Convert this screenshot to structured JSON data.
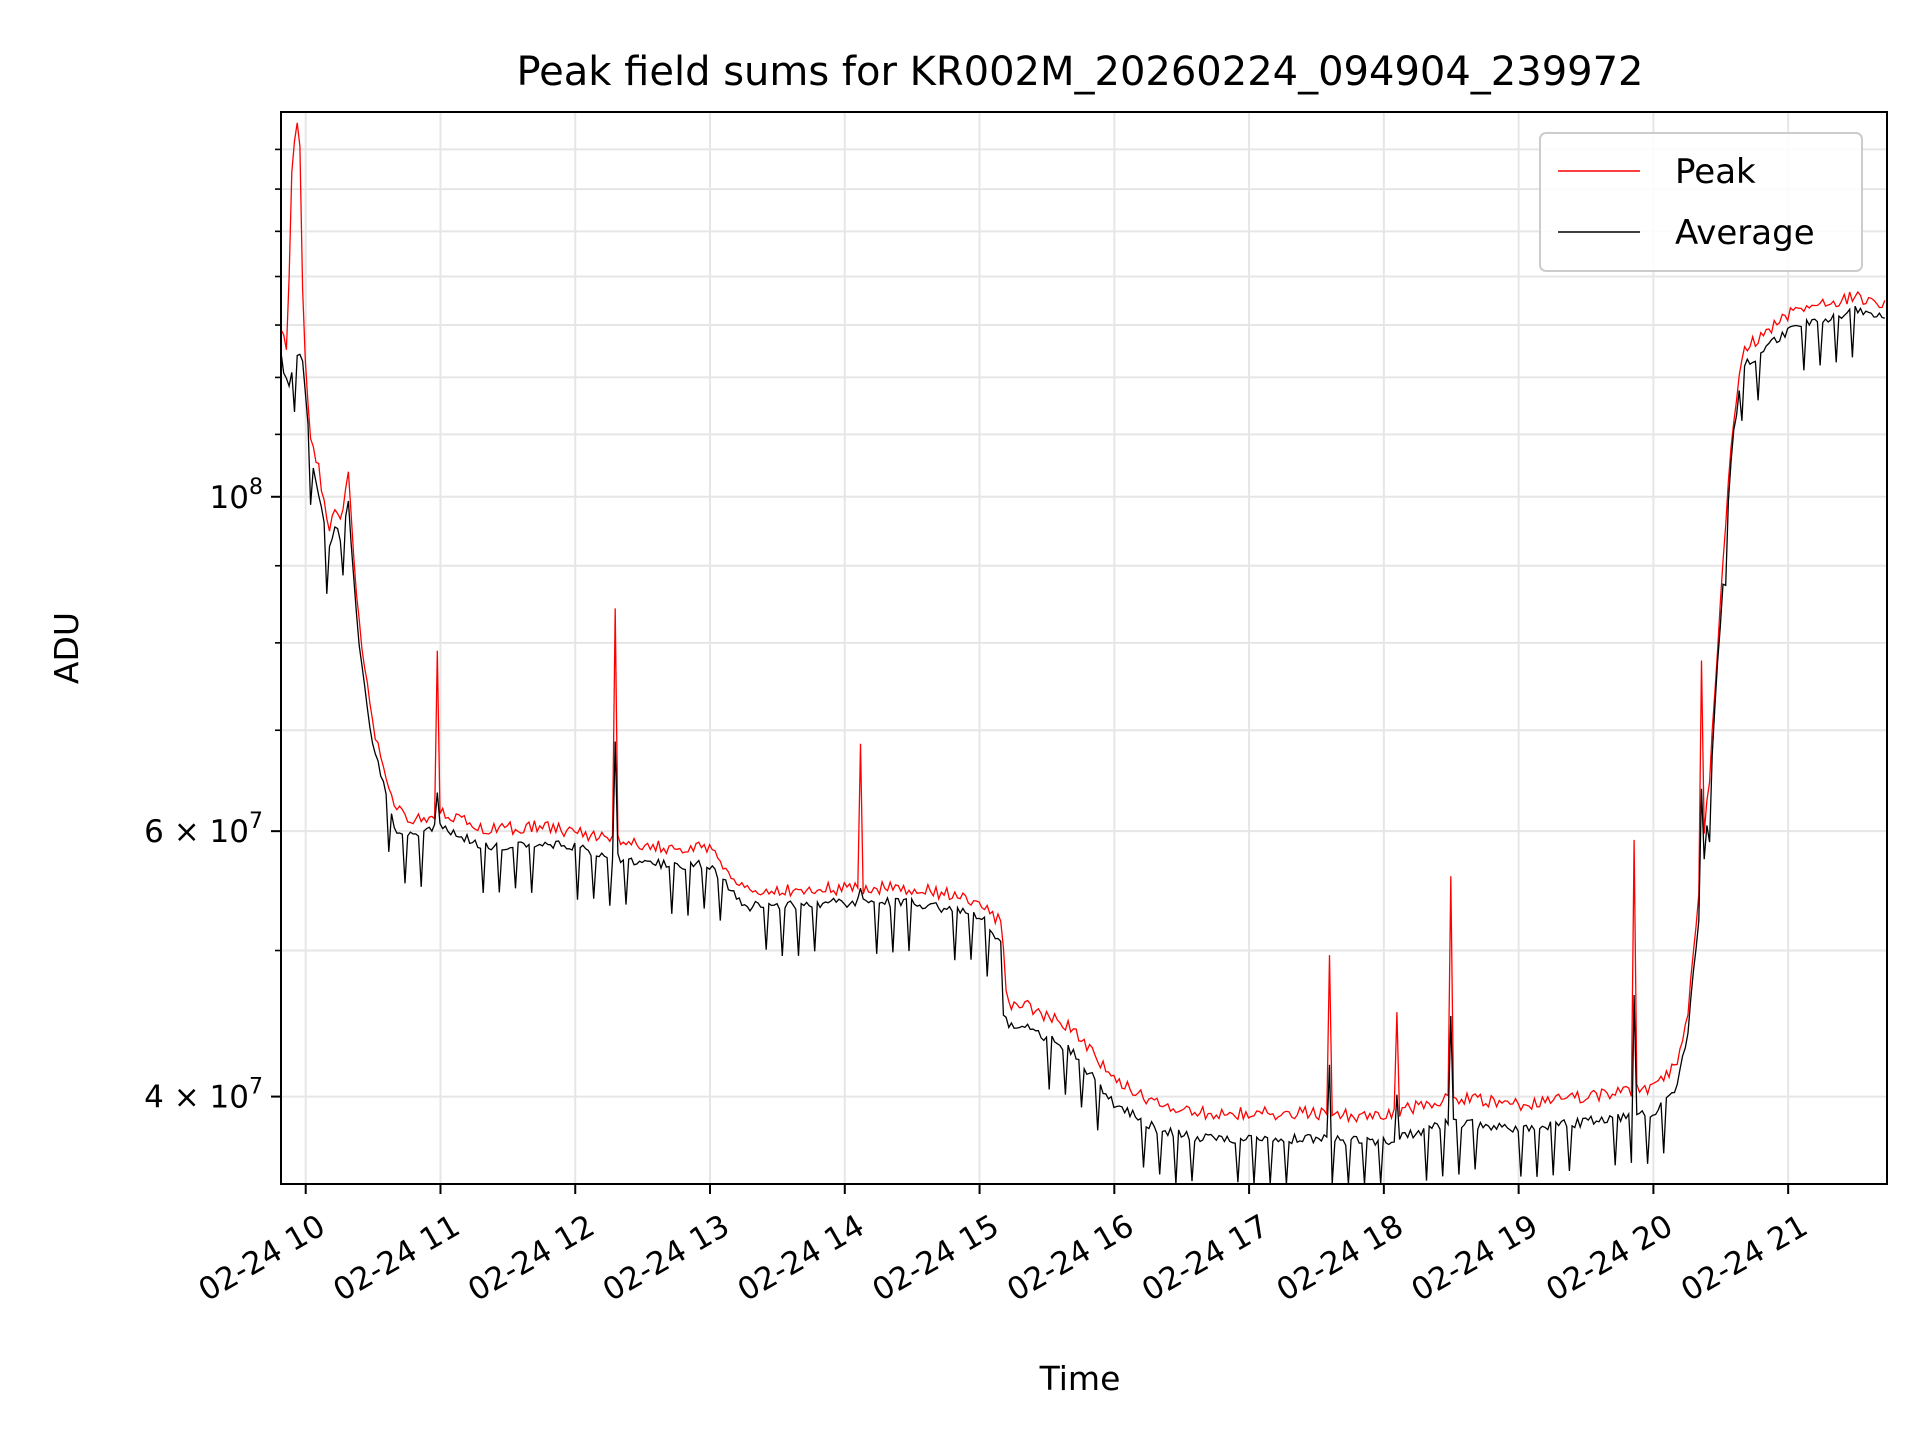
{
  "chart_data": {
    "type": "line",
    "title": "Peak field sums for KR002M_20260224_094904_239972",
    "xlabel": "Time",
    "ylabel": "ADU",
    "yscale": "log",
    "ylim": [
      35000000,
      180000000
    ],
    "xlim": [
      "02-24 09:49",
      "02-24 21:44"
    ],
    "x_ticks": [
      "02-24 10",
      "02-24 11",
      "02-24 12",
      "02-24 13",
      "02-24 14",
      "02-24 15",
      "02-24 16",
      "02-24 17",
      "02-24 18",
      "02-24 19",
      "02-24 20",
      "02-24 21"
    ],
    "y_ticks": [
      {
        "value": 40000000,
        "base": "4",
        "exp": "7"
      },
      {
        "value": 60000000,
        "base": "6",
        "exp": "7"
      },
      {
        "value": 100000000,
        "base": "10",
        "exp": "8"
      }
    ],
    "grid": true,
    "legend_position": "top-right",
    "series": [
      {
        "name": "Peak",
        "color": "#ff0000",
        "x": [
          "02-24 09:49",
          "02-24 09:52",
          "02-24 09:54",
          "02-24 09:57",
          "02-24 09:59",
          "02-24 10:02",
          "02-24 10:06",
          "02-24 10:10",
          "02-24 10:13",
          "02-24 10:16",
          "02-24 10:19",
          "02-24 10:22",
          "02-24 10:25",
          "02-24 10:30",
          "02-24 10:35",
          "02-24 10:40",
          "02-24 10:50",
          "02-24 11:00",
          "02-24 11:10",
          "02-24 11:20",
          "02-24 11:40",
          "02-24 12:00",
          "02-24 12:20",
          "02-24 12:40",
          "02-24 13:00",
          "02-24 13:15",
          "02-24 13:30",
          "02-24 14:00",
          "02-24 14:30",
          "02-24 15:00",
          "02-24 15:10",
          "02-24 15:12",
          "02-24 15:20",
          "02-24 15:40",
          "02-24 16:00",
          "02-24 16:20",
          "02-24 16:40",
          "02-24 17:00",
          "02-24 17:30",
          "02-24 18:00",
          "02-24 18:30",
          "02-24 19:00",
          "02-24 19:30",
          "02-24 20:00",
          "02-24 20:10",
          "02-24 20:15",
          "02-24 20:20",
          "02-24 20:25",
          "02-24 20:30",
          "02-24 20:35",
          "02-24 20:40",
          "02-24 21:00",
          "02-24 21:30",
          "02-24 21:44"
        ],
        "y": [
          130000000,
          125000000,
          170000000,
          180000000,
          128000000,
          110000000,
          104000000,
          95000000,
          99000000,
          97000000,
          103000000,
          88000000,
          80000000,
          70000000,
          66000000,
          62000000,
          61000000,
          62000000,
          61000000,
          60000000,
          60500000,
          60000000,
          59000000,
          58500000,
          58500000,
          55000000,
          54800000,
          55000000,
          55000000,
          54000000,
          52000000,
          46000000,
          46000000,
          44500000,
          41000000,
          39500000,
          39000000,
          39000000,
          39000000,
          38800000,
          40000000,
          39500000,
          40000000,
          40500000,
          42000000,
          45000000,
          54000000,
          65000000,
          85000000,
          110000000,
          125000000,
          132000000,
          136000000,
          134000000
        ]
      },
      {
        "name": "Average",
        "color": "#000000",
        "x": [
          "02-24 09:49",
          "02-24 09:52",
          "02-24 09:54",
          "02-24 09:57",
          "02-24 09:59",
          "02-24 10:02",
          "02-24 10:06",
          "02-24 10:10",
          "02-24 10:13",
          "02-24 10:16",
          "02-24 10:19",
          "02-24 10:22",
          "02-24 10:25",
          "02-24 10:30",
          "02-24 10:35",
          "02-24 10:40",
          "02-24 10:50",
          "02-24 11:00",
          "02-24 11:10",
          "02-24 11:20",
          "02-24 11:40",
          "02-24 12:00",
          "02-24 12:20",
          "02-24 12:40",
          "02-24 13:00",
          "02-24 13:15",
          "02-24 13:30",
          "02-24 14:00",
          "02-24 14:30",
          "02-24 15:00",
          "02-24 15:10",
          "02-24 15:12",
          "02-24 15:20",
          "02-24 15:40",
          "02-24 16:00",
          "02-24 16:20",
          "02-24 16:40",
          "02-24 17:00",
          "02-24 17:30",
          "02-24 18:00",
          "02-24 18:30",
          "02-24 19:00",
          "02-24 19:30",
          "02-24 20:00",
          "02-24 20:10",
          "02-24 20:15",
          "02-24 20:20",
          "02-24 20:25",
          "02-24 20:30",
          "02-24 20:35",
          "02-24 20:40",
          "02-24 21:00",
          "02-24 21:30",
          "02-24 21:44"
        ],
        "y": [
          124000000,
          118000000,
          122000000,
          124000000,
          122000000,
          106000000,
          100000000,
          92000000,
          95000000,
          94000000,
          99000000,
          85000000,
          77000000,
          68000000,
          64500000,
          60000000,
          59500000,
          60500000,
          59500000,
          58500000,
          59000000,
          58500000,
          57500000,
          57000000,
          57000000,
          53500000,
          53500000,
          53800000,
          53800000,
          52800000,
          50500000,
          44500000,
          44500000,
          43000000,
          39500000,
          38000000,
          37500000,
          37500000,
          37500000,
          37300000,
          38500000,
          38000000,
          38500000,
          39000000,
          40500000,
          43500000,
          52000000,
          63000000,
          83000000,
          108000000,
          122000000,
          129000000,
          133000000,
          131000000
        ]
      }
    ]
  }
}
